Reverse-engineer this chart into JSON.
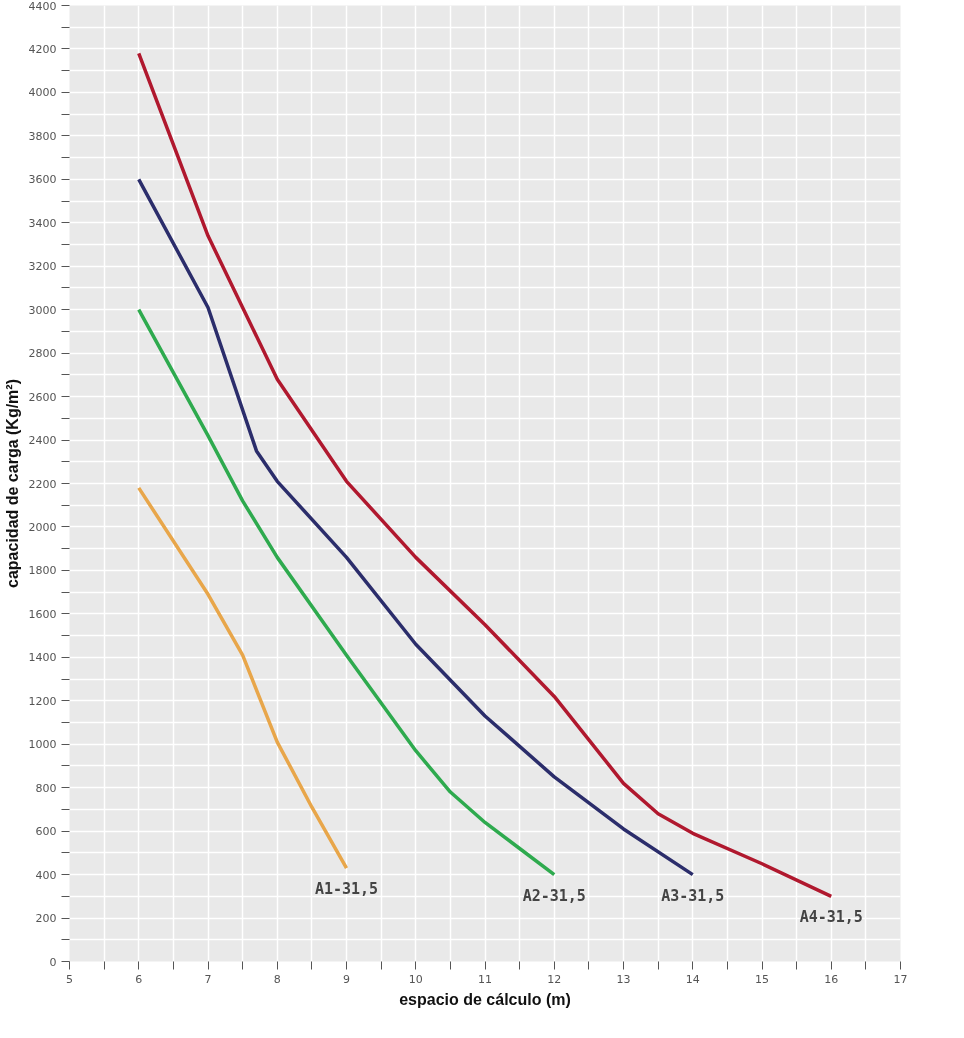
{
  "chart_data": {
    "type": "line",
    "xlabel": "espacio de cálculo (m)",
    "ylabel": "capacidad de carga (Kg/m²)",
    "xlim": [
      5,
      17
    ],
    "ylim": [
      0,
      4400
    ],
    "xticks": [
      5,
      {
        "value": 5.5,
        "label": null
      },
      6,
      {
        "value": 6.5,
        "label": null
      },
      7,
      {
        "value": 7.5,
        "label": null
      },
      8,
      {
        "value": 8.5,
        "label": null
      },
      9,
      {
        "value": 9.5,
        "label": null
      },
      10,
      {
        "value": 10.5,
        "label": null
      },
      11,
      {
        "value": 11.5,
        "label": null
      },
      12,
      {
        "value": 12.5,
        "label": null
      },
      13,
      {
        "value": 13.5,
        "label": null
      },
      14,
      {
        "value": 14.5,
        "label": null
      },
      15,
      {
        "value": 15.5,
        "label": null
      },
      16,
      {
        "value": 16.5,
        "label": null
      },
      17
    ],
    "yticks": [
      0,
      {
        "value": 100,
        "label": null
      },
      200,
      {
        "value": 300,
        "label": null
      },
      400,
      {
        "value": 500,
        "label": null
      },
      600,
      {
        "value": 700,
        "label": null
      },
      800,
      {
        "value": 900,
        "label": null
      },
      1000,
      {
        "value": 1100,
        "label": null
      },
      1200,
      {
        "value": 1300,
        "label": null
      },
      1400,
      {
        "value": 1500,
        "label": null
      },
      1600,
      {
        "value": 1700,
        "label": null
      },
      1800,
      {
        "value": 1900,
        "label": null
      },
      2000,
      {
        "value": 2100,
        "label": null
      },
      2200,
      {
        "value": 2300,
        "label": null
      },
      2400,
      {
        "value": 2500,
        "label": null
      },
      2600,
      {
        "value": 2700,
        "label": null
      },
      2800,
      {
        "value": 2900,
        "label": null
      },
      3000,
      {
        "value": 3100,
        "label": null
      },
      3200,
      {
        "value": 3300,
        "label": null
      },
      3400,
      {
        "value": 3500,
        "label": null
      },
      3600,
      {
        "value": 3700,
        "label": null
      },
      3800,
      {
        "value": 3900,
        "label": null
      },
      4000,
      {
        "value": 4100,
        "label": null
      },
      4200,
      {
        "value": 4300,
        "label": null
      },
      4400
    ],
    "grid": true,
    "marker": "none",
    "line_style": "solid",
    "series": [
      {
        "name": "A1-31,5",
        "color": "#e8a64a",
        "x": [
          6,
          7,
          7.5,
          8,
          8.5,
          9
        ],
        "values": [
          2180,
          1690,
          1410,
          1010,
          710,
          430
        ]
      },
      {
        "name": "A2-31,5",
        "color": "#2eaa4e",
        "x": [
          6,
          7,
          7.5,
          8,
          9,
          10,
          10.5,
          11,
          11.5,
          12
        ],
        "values": [
          3000,
          2420,
          2120,
          1860,
          1410,
          970,
          780,
          640,
          520,
          400
        ]
      },
      {
        "name": "A3-31,5",
        "color": "#2b2d6b",
        "x": [
          6,
          7,
          7.7,
          8,
          9,
          10,
          11,
          12,
          13,
          14
        ],
        "values": [
          3600,
          3010,
          2350,
          2210,
          1860,
          1460,
          1130,
          850,
          610,
          400
        ]
      },
      {
        "name": "A4-31,5",
        "color": "#b0182e",
        "x": [
          6,
          7,
          8,
          9,
          10,
          11,
          12,
          13,
          13.5,
          14,
          15,
          16
        ],
        "values": [
          4180,
          3340,
          2680,
          2210,
          1860,
          1550,
          1220,
          820,
          680,
          590,
          450,
          300
        ]
      }
    ]
  }
}
